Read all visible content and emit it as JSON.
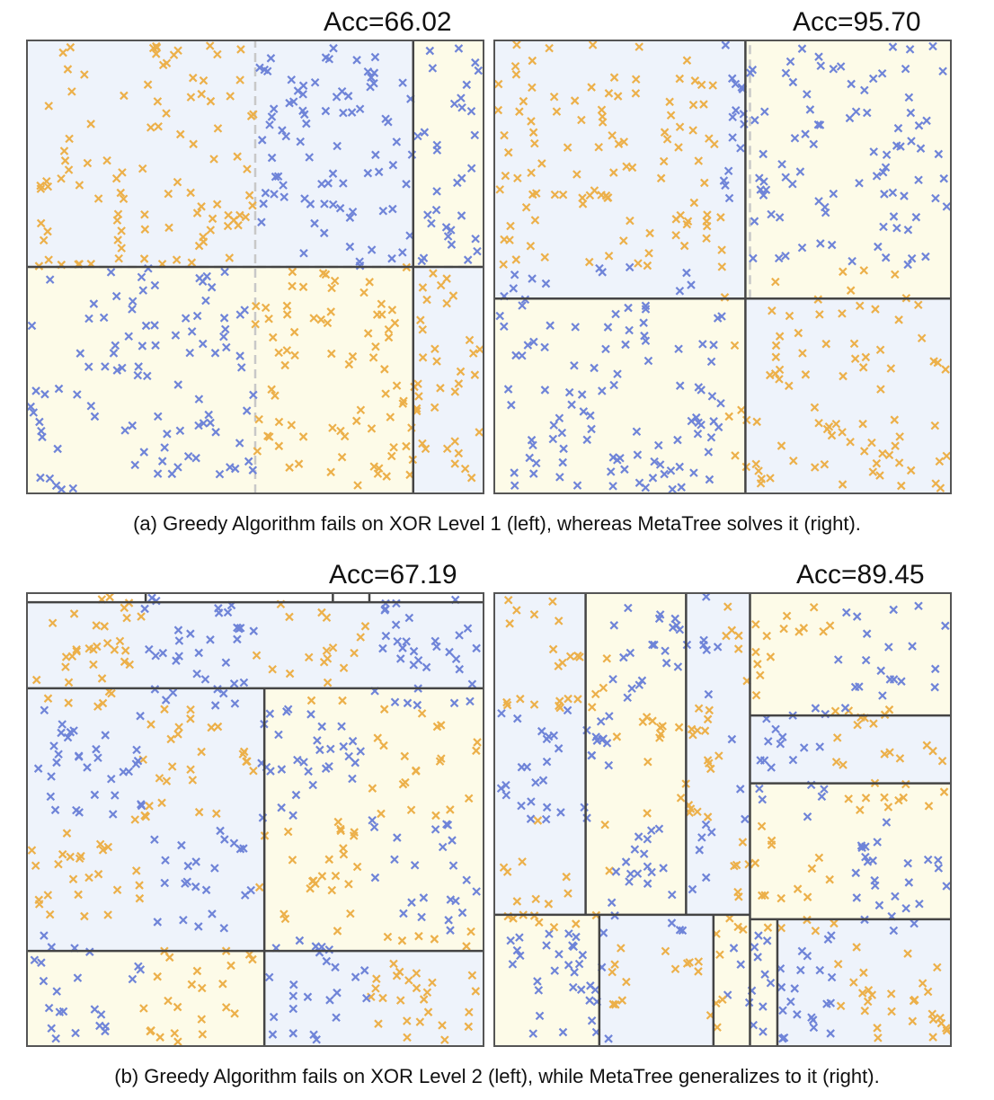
{
  "colors": {
    "blue": "#6f84d8",
    "orange": "#ecb04a",
    "blue_fill": "#eef3fb",
    "orange_fill": "#fdfbe8",
    "split": "#444444",
    "dashed": "#c8c8c8"
  },
  "captions": {
    "a": "(a) Greedy Algorithm fails on XOR Level 1 (left), whereas MetaTree solves it (right).",
    "b": "(b) Greedy Algorithm fails on XOR Level 2 (left), while MetaTree generalizes to it (right)."
  },
  "chart_data": [
    {
      "type": "scatter",
      "title": "Acc=66.02",
      "xlim": [
        0,
        1
      ],
      "ylim": [
        0,
        1
      ],
      "regions": [
        {
          "x0": 0,
          "x1": 0.846,
          "y0": 0.5,
          "y1": 1,
          "label": "blue"
        },
        {
          "x0": 0,
          "x1": 0.846,
          "y0": 0,
          "y1": 0.5,
          "label": "orange"
        },
        {
          "x0": 0.846,
          "x1": 1,
          "y0": 0.5,
          "y1": 1,
          "label": "orange"
        },
        {
          "x0": 0.846,
          "x1": 1,
          "y0": 0,
          "y1": 0.5,
          "label": "blue"
        }
      ],
      "splits": [
        [
          0.846,
          0,
          0.846,
          1
        ],
        [
          0,
          0.5,
          0.846,
          0.5
        ],
        [
          0.846,
          0.5,
          1,
          0.5
        ]
      ],
      "dashed": [
        [
          0.5,
          0,
          0.5,
          1
        ],
        [
          0,
          0.5,
          1,
          0.5
        ]
      ],
      "series": [
        {
          "rule": "xor",
          "seed": 11,
          "n": 420
        }
      ]
    },
    {
      "type": "scatter",
      "title": "Acc=95.70",
      "xlim": [
        0,
        1
      ],
      "ylim": [
        0,
        1
      ],
      "regions": [
        {
          "x0": 0,
          "x1": 0.55,
          "y0": 0.43,
          "y1": 1,
          "label": "blue"
        },
        {
          "x0": 0.55,
          "x1": 1,
          "y0": 0.43,
          "y1": 1,
          "label": "orange"
        },
        {
          "x0": 0,
          "x1": 0.55,
          "y0": 0,
          "y1": 0.43,
          "label": "orange"
        },
        {
          "x0": 0.55,
          "x1": 1,
          "y0": 0,
          "y1": 0.43,
          "label": "blue"
        }
      ],
      "splits": [
        [
          0,
          0.43,
          1,
          0.43
        ],
        [
          0.55,
          0,
          0.55,
          1
        ]
      ],
      "dashed": [
        [
          0.56,
          0.43,
          0.56,
          1
        ],
        [
          0.56,
          0.43,
          1,
          0.43
        ]
      ],
      "series": [
        {
          "rule": "xor",
          "seed": 23,
          "n": 400
        }
      ]
    },
    {
      "type": "scatter",
      "title": "Acc=67.19",
      "xlim": [
        0,
        1
      ],
      "ylim": [
        0,
        1
      ],
      "regions": [
        {
          "x0": 0,
          "x1": 1,
          "y0": 0.79,
          "y1": 0.98,
          "label": "blue"
        },
        {
          "x0": 0,
          "x1": 0.52,
          "y0": 0.21,
          "y1": 0.79,
          "label": "blue"
        },
        {
          "x0": 0.52,
          "x1": 1,
          "y0": 0.21,
          "y1": 0.79,
          "label": "orange"
        },
        {
          "x0": 0,
          "x1": 0.52,
          "y0": 0,
          "y1": 0.21,
          "label": "orange"
        },
        {
          "x0": 0.52,
          "x1": 1,
          "y0": 0,
          "y1": 0.21,
          "label": "blue"
        }
      ],
      "splits": [
        [
          0,
          0.98,
          1,
          0.98
        ],
        [
          0,
          0.79,
          1,
          0.79
        ],
        [
          0.52,
          0,
          0.52,
          0.79
        ],
        [
          0,
          0.21,
          1,
          0.21
        ],
        [
          0.26,
          0.98,
          0.26,
          1
        ],
        [
          0.67,
          0.98,
          0.67,
          1
        ],
        [
          0.75,
          0.98,
          0.75,
          1
        ]
      ],
      "dashed": [],
      "series": [
        {
          "rule": "xor2",
          "seed": 37,
          "n": 430
        }
      ]
    },
    {
      "type": "scatter",
      "title": "Acc=89.45",
      "xlim": [
        0,
        1
      ],
      "ylim": [
        0,
        1
      ],
      "regions": [
        {
          "x0": 0,
          "x1": 0.2,
          "y0": 0.29,
          "y1": 1,
          "label": "blue"
        },
        {
          "x0": 0.2,
          "x1": 0.42,
          "y0": 0.29,
          "y1": 1,
          "label": "orange"
        },
        {
          "x0": 0.42,
          "x1": 0.56,
          "y0": 0.29,
          "y1": 1,
          "label": "blue"
        },
        {
          "x0": 0.56,
          "x1": 1,
          "y0": 0.73,
          "y1": 1,
          "label": "orange"
        },
        {
          "x0": 0.56,
          "x1": 1,
          "y0": 0.58,
          "y1": 0.73,
          "label": "blue"
        },
        {
          "x0": 0.56,
          "x1": 1,
          "y0": 0.28,
          "y1": 0.58,
          "label": "orange"
        },
        {
          "x0": 0,
          "x1": 0.23,
          "y0": 0,
          "y1": 0.29,
          "label": "orange"
        },
        {
          "x0": 0.23,
          "x1": 0.48,
          "y0": 0,
          "y1": 0.29,
          "label": "blue"
        },
        {
          "x0": 0.48,
          "x1": 0.56,
          "y0": 0,
          "y1": 0.29,
          "label": "orange"
        },
        {
          "x0": 0.56,
          "x1": 0.62,
          "y0": 0,
          "y1": 0.28,
          "label": "orange"
        },
        {
          "x0": 0.62,
          "x1": 1,
          "y0": 0,
          "y1": 0.28,
          "label": "blue"
        }
      ],
      "splits": [
        [
          0.2,
          0.29,
          0.2,
          1
        ],
        [
          0.42,
          0.29,
          0.42,
          1
        ],
        [
          0.56,
          0,
          0.56,
          1
        ],
        [
          0,
          0.29,
          0.56,
          0.29
        ],
        [
          0.56,
          0.73,
          1,
          0.73
        ],
        [
          0.56,
          0.58,
          1,
          0.58
        ],
        [
          0.56,
          0.28,
          1,
          0.28
        ],
        [
          0.23,
          0,
          0.23,
          0.29
        ],
        [
          0.48,
          0,
          0.48,
          0.29
        ],
        [
          0.62,
          0,
          0.62,
          0.28
        ]
      ],
      "dashed": [],
      "series": [
        {
          "rule": "xor2",
          "seed": 53,
          "n": 420
        }
      ]
    }
  ]
}
